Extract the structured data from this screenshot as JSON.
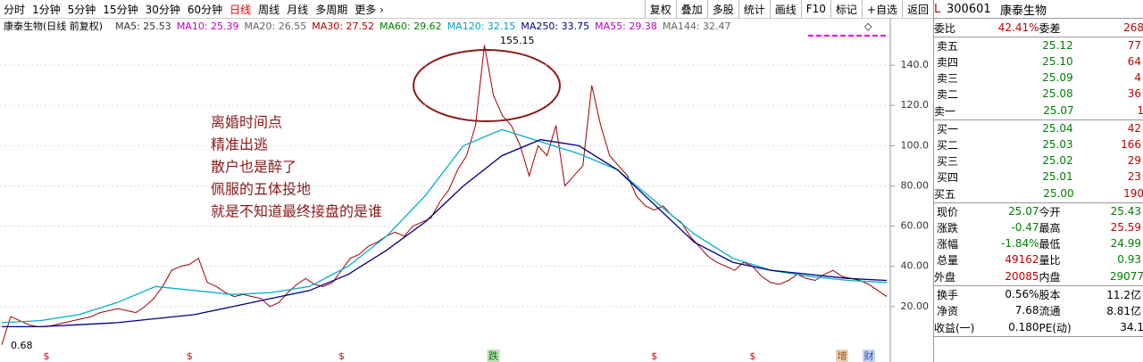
{
  "toolbar": {
    "periods": [
      "分时",
      "1分钟",
      "5分钟",
      "15分钟",
      "30分钟",
      "60分钟",
      "日线",
      "周线",
      "月线",
      "多周期",
      "更多 ›"
    ],
    "active": 6,
    "tools": [
      "复权",
      "叠加",
      "多股",
      "统计",
      "画线",
      "F10",
      "标记",
      "+自选",
      "返回"
    ]
  },
  "chart_data": {
    "type": "line",
    "title": "康泰生物(日线 前复权)",
    "ma_labels": [
      {
        "text": "MA5: 25.53",
        "color": "#333"
      },
      {
        "text": "MA10: 25.39",
        "color": "#c000c0"
      },
      {
        "text": "MA20: 26.55",
        "color": "#666"
      },
      {
        "text": "MA30: 27.52",
        "color": "#b00000"
      },
      {
        "text": "MA60: 29.62",
        "color": "#008000"
      },
      {
        "text": "MA120: 32.15",
        "color": "#00a0c0"
      },
      {
        "text": "MA250: 33.75",
        "color": "#000080"
      },
      {
        "text": "MA55: 29.38",
        "color": "#c000c0"
      },
      {
        "text": "MA144: 32.47",
        "color": "#666"
      }
    ],
    "annotations": [
      "离婚时间点",
      "精准出逃",
      "散户也是醉了",
      "佩服的五体投地",
      "就是不知道最终接盘的是谁"
    ],
    "high_label": "155.15",
    "low_label": "0.68",
    "ylim": [
      -4,
      160
    ],
    "yticks": [
      {
        "value": 20,
        "label": "20.00"
      },
      {
        "value": 40,
        "label": "40.00"
      },
      {
        "value": 60,
        "label": "60.00"
      },
      {
        "value": 80,
        "label": "80.00"
      },
      {
        "value": 100,
        "label": "100.0"
      },
      {
        "value": 120,
        "label": "120.0"
      },
      {
        "value": 140,
        "label": "140.0"
      }
    ],
    "grid": true,
    "series": [
      {
        "color": "#a00000",
        "values": [
          1,
          15,
          13,
          11,
          10,
          10,
          11,
          12,
          13,
          14,
          15,
          17,
          18,
          19,
          18,
          17,
          20,
          24,
          30,
          38,
          40,
          41,
          44,
          32,
          30,
          27,
          25,
          26,
          25,
          24,
          20,
          22,
          27,
          31,
          34,
          31,
          30,
          32,
          38,
          44,
          46,
          50,
          52,
          55,
          57,
          55,
          60,
          62,
          64,
          72,
          78,
          88,
          95,
          110,
          150,
          125,
          115,
          110,
          100,
          85,
          100,
          95,
          110,
          80,
          85,
          90,
          130,
          110,
          95,
          90,
          85,
          75,
          70,
          68,
          70,
          65,
          62,
          55,
          50,
          45,
          42,
          40,
          38,
          42,
          40,
          35,
          32,
          31,
          33,
          36,
          34,
          33,
          36,
          38,
          35,
          34,
          33,
          31,
          28,
          25
        ]
      },
      {
        "color": "#00b0c8",
        "values": [
          12,
          13,
          16,
          22,
          30,
          28,
          26,
          27,
          30,
          40,
          55,
          75,
          100,
          108,
          102,
          96,
          88,
          72,
          56,
          44,
          38,
          35,
          33,
          32
        ]
      },
      {
        "color": "#000080",
        "values": [
          10,
          10,
          11,
          12,
          14,
          16,
          20,
          24,
          28,
          36,
          48,
          62,
          80,
          95,
          103,
          100,
          88,
          70,
          52,
          42,
          38,
          36,
          34,
          33
        ]
      }
    ],
    "events": [
      {
        "label": "$",
        "at": 5
      },
      {
        "label": "$",
        "at": 21
      },
      {
        "label": "$",
        "at": 38
      },
      {
        "label": "跌",
        "at": 55
      },
      {
        "label": "$",
        "at": 73
      },
      {
        "label": "$",
        "at": 84
      },
      {
        "label": "增",
        "at": 94
      },
      {
        "label": "财",
        "at": 97
      }
    ]
  },
  "quote": {
    "badge": "L",
    "code": "300601",
    "name": "康泰生物",
    "weibi": [
      "委比",
      "42.41%",
      "委差",
      "268"
    ],
    "sells": [
      [
        "卖五",
        "25.12",
        "77"
      ],
      [
        "卖四",
        "25.10",
        "64"
      ],
      [
        "卖三",
        "25.09",
        "4"
      ],
      [
        "卖二",
        "25.08",
        "36"
      ],
      [
        "卖一",
        "25.07",
        "1"
      ]
    ],
    "buys": [
      [
        "买一",
        "25.04",
        "42"
      ],
      [
        "买二",
        "25.03",
        "166"
      ],
      [
        "买三",
        "25.02",
        "29"
      ],
      [
        "买四",
        "25.01",
        "23"
      ],
      [
        "买五",
        "25.00",
        "190"
      ]
    ],
    "stats": [
      [
        "现价",
        "25.07",
        "今开",
        "25.43"
      ],
      [
        "涨跌",
        "-0.47",
        "最高",
        "25.59"
      ],
      [
        "涨幅",
        "-1.84%",
        "最低",
        "24.99"
      ],
      [
        "总量",
        "49162",
        "量比",
        "0.93"
      ],
      [
        "外盘",
        "20085",
        "内盘",
        "29077"
      ]
    ],
    "fundamentals": [
      [
        "换手",
        "0.56%",
        "股本",
        "11.2亿"
      ],
      [
        "净资",
        "7.68",
        "流通",
        "8.81亿"
      ],
      [
        "收益(一)",
        "0.180",
        "PE(动)",
        "34.1"
      ]
    ]
  }
}
